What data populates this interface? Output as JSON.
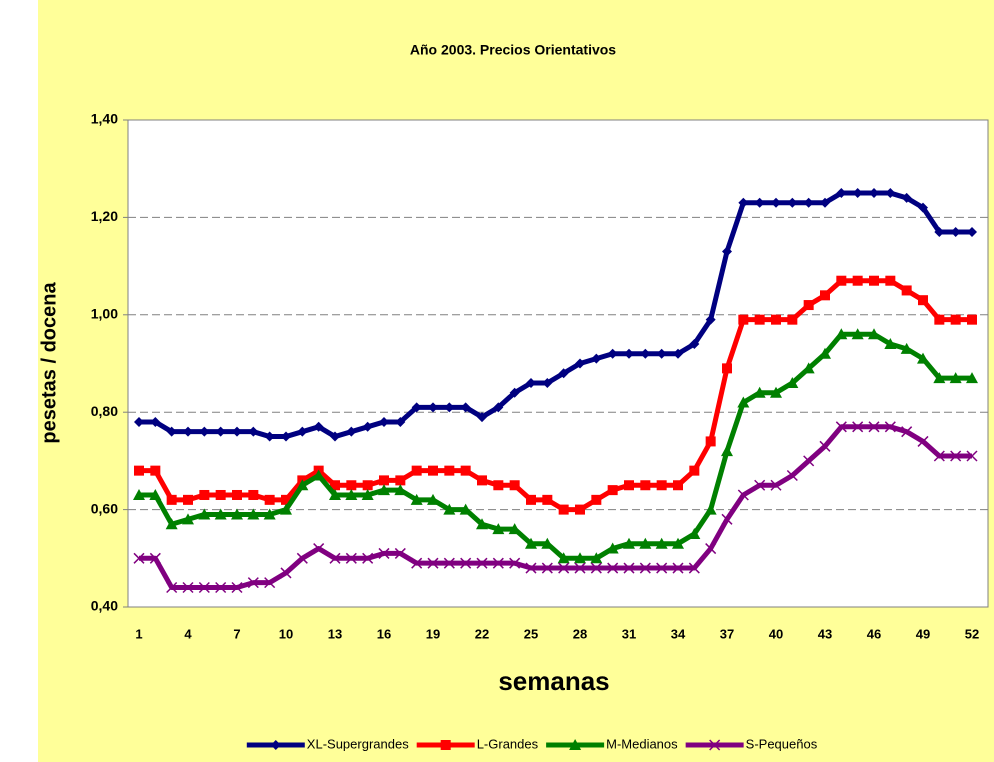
{
  "chart_data": {
    "type": "line",
    "title": "Año 2003. Precios Orientativos",
    "x_label": "semanas",
    "y_label": "pesetas / docena",
    "categories": [
      1,
      null,
      null,
      4,
      null,
      null,
      7,
      null,
      null,
      10,
      null,
      null,
      13,
      null,
      null,
      16,
      null,
      null,
      19,
      null,
      null,
      22,
      null,
      null,
      25,
      null,
      null,
      28,
      null,
      null,
      31,
      null,
      null,
      34,
      null,
      null,
      37,
      null,
      null,
      40,
      null,
      null,
      43,
      null,
      null,
      46,
      null,
      null,
      49,
      null,
      null,
      52
    ],
    "ylim": [
      0.4,
      1.4
    ],
    "yticks": [
      {
        "value": 0.4,
        "label": "0,40"
      },
      {
        "value": 0.6,
        "label": "0,60"
      },
      {
        "value": 0.8,
        "label": "0,80"
      },
      {
        "value": 1.0,
        "label": "1,00"
      },
      {
        "value": 1.2,
        "label": "1,20"
      },
      {
        "value": 1.4,
        "label": "1,40"
      }
    ],
    "grid": true,
    "legend": "bottom",
    "series": [
      {
        "name": "XL-Supergrandes",
        "color": "#000080",
        "marker": "diamond",
        "values": [
          0.78,
          0.78,
          0.76,
          0.76,
          0.76,
          0.76,
          0.76,
          0.76,
          0.75,
          0.75,
          0.76,
          0.77,
          0.75,
          0.76,
          0.77,
          0.78,
          0.78,
          0.81,
          0.81,
          0.81,
          0.81,
          0.79,
          0.81,
          0.84,
          0.86,
          0.86,
          0.88,
          0.9,
          0.91,
          0.92,
          0.92,
          0.92,
          0.92,
          0.92,
          0.94,
          0.99,
          1.13,
          1.23,
          1.23,
          1.23,
          1.23,
          1.23,
          1.23,
          1.25,
          1.25,
          1.25,
          1.25,
          1.24,
          1.22,
          1.17,
          1.17,
          1.17
        ]
      },
      {
        "name": "L-Grandes",
        "color": "#ff0000",
        "marker": "square",
        "values": [
          0.68,
          0.68,
          0.62,
          0.62,
          0.63,
          0.63,
          0.63,
          0.63,
          0.62,
          0.62,
          0.66,
          0.68,
          0.65,
          0.65,
          0.65,
          0.66,
          0.66,
          0.68,
          0.68,
          0.68,
          0.68,
          0.66,
          0.65,
          0.65,
          0.62,
          0.62,
          0.6,
          0.6,
          0.62,
          0.64,
          0.65,
          0.65,
          0.65,
          0.65,
          0.68,
          0.74,
          0.89,
          0.99,
          0.99,
          0.99,
          0.99,
          1.02,
          1.04,
          1.07,
          1.07,
          1.07,
          1.07,
          1.05,
          1.03,
          0.99,
          0.99,
          0.99
        ]
      },
      {
        "name": "M-Medianos",
        "color": "#008000",
        "marker": "triangle",
        "values": [
          0.63,
          0.63,
          0.57,
          0.58,
          0.59,
          0.59,
          0.59,
          0.59,
          0.59,
          0.6,
          0.65,
          0.67,
          0.63,
          0.63,
          0.63,
          0.64,
          0.64,
          0.62,
          0.62,
          0.6,
          0.6,
          0.57,
          0.56,
          0.56,
          0.53,
          0.53,
          0.5,
          0.5,
          0.5,
          0.52,
          0.53,
          0.53,
          0.53,
          0.53,
          0.55,
          0.6,
          0.72,
          0.82,
          0.84,
          0.84,
          0.86,
          0.89,
          0.92,
          0.96,
          0.96,
          0.96,
          0.94,
          0.93,
          0.91,
          0.87,
          0.87,
          0.87
        ]
      },
      {
        "name": "S-Pequeños",
        "color": "#800080",
        "marker": "x",
        "values": [
          0.5,
          0.5,
          0.44,
          0.44,
          0.44,
          0.44,
          0.44,
          0.45,
          0.45,
          0.47,
          0.5,
          0.52,
          0.5,
          0.5,
          0.5,
          0.51,
          0.51,
          0.49,
          0.49,
          0.49,
          0.49,
          0.49,
          0.49,
          0.49,
          0.48,
          0.48,
          0.48,
          0.48,
          0.48,
          0.48,
          0.48,
          0.48,
          0.48,
          0.48,
          0.48,
          0.52,
          0.58,
          0.63,
          0.65,
          0.65,
          0.67,
          0.7,
          0.73,
          0.77,
          0.77,
          0.77,
          0.77,
          0.76,
          0.74,
          0.71,
          0.71,
          0.71
        ]
      }
    ]
  }
}
